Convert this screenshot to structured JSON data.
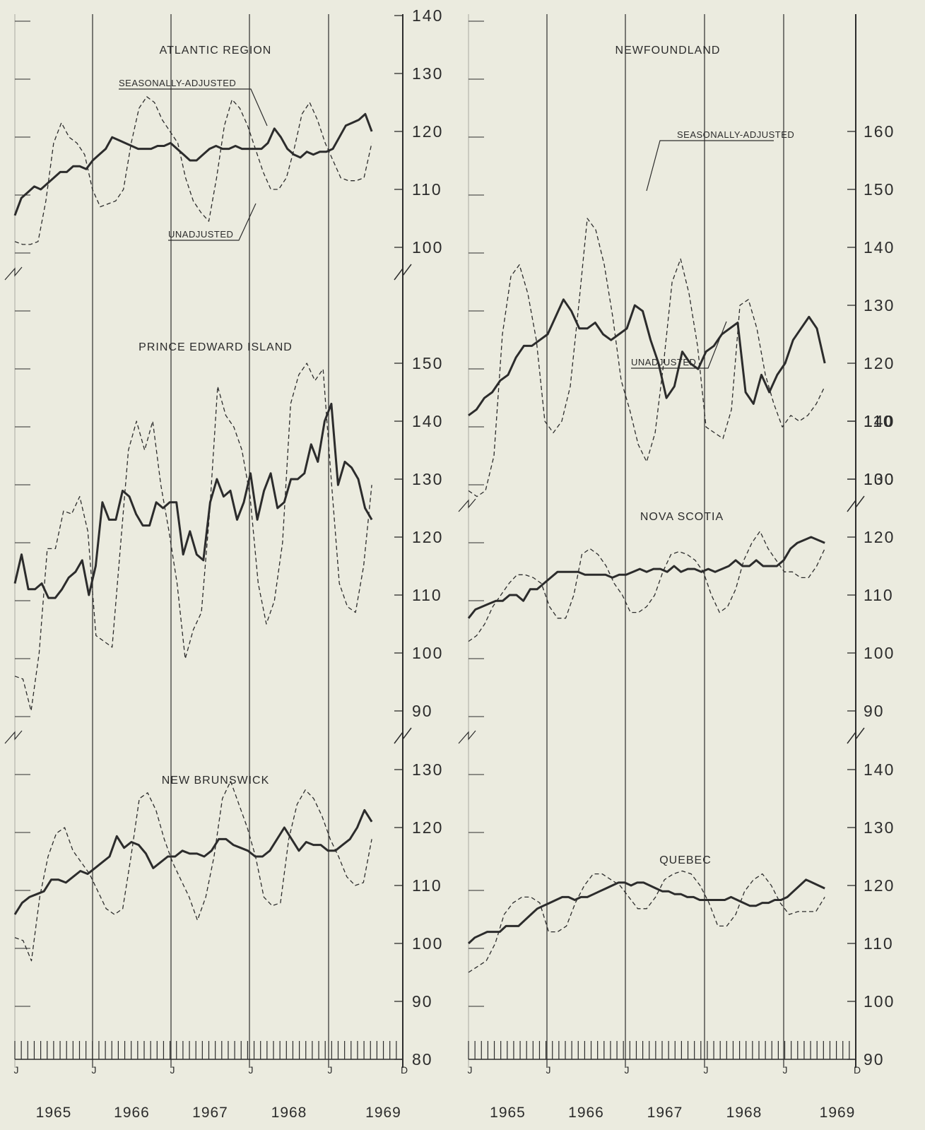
{
  "colors": {
    "background": "#ebebdf",
    "ink": "#2c2c2c"
  },
  "axis": {
    "x_ticks": [
      "J",
      "J",
      "J",
      "J",
      "J",
      "D"
    ],
    "years": [
      "1965",
      "1966",
      "1967",
      "1968",
      "1969"
    ]
  },
  "chart_data": [
    {
      "type": "line",
      "title": "ATLANTIC REGION",
      "x_start": "1965-01",
      "x_end": "1969-06",
      "ylim": [
        100,
        140
      ],
      "y_ticks": [
        "100",
        "110",
        "120",
        "130",
        "140"
      ],
      "annotations": [
        "SEASONALLY-ADJUSTED",
        "UNADJUSTED"
      ],
      "series": [
        {
          "style": "solid",
          "values": [
            105.5,
            108.5,
            109.5,
            110.5,
            110,
            111,
            112,
            113,
            113,
            114,
            114,
            113.5,
            115,
            116,
            117,
            119,
            118.5,
            118,
            117.5,
            117,
            117,
            117,
            117.5,
            117.5,
            118,
            117,
            116,
            115,
            115,
            116,
            117,
            117.5,
            117,
            117,
            117.5,
            117,
            117,
            117,
            117,
            118,
            120.5,
            119,
            117,
            116,
            115.5,
            116.5,
            116,
            116.5,
            116.5,
            117,
            119,
            121,
            121.5,
            122,
            123,
            120
          ]
        },
        {
          "style": "dashed",
          "values": [
            101,
            100.5,
            100.5,
            101,
            108,
            118,
            121.5,
            119,
            118,
            116,
            110,
            107,
            107.5,
            108,
            110,
            118,
            124,
            126,
            125,
            122,
            120,
            118,
            112,
            108,
            106,
            104.5,
            112,
            121,
            125.5,
            124,
            121,
            117,
            113,
            110,
            110,
            112,
            117,
            123,
            125,
            122,
            118,
            115,
            112,
            111.5,
            111.5,
            112,
            118
          ]
        }
      ]
    },
    {
      "type": "line",
      "title": "PRINCE EDWARD ISLAND",
      "x_start": "1965-01",
      "x_end": "1969-06",
      "ylim": [
        90,
        150
      ],
      "y_ticks": [
        "90",
        "100",
        "110",
        "120",
        "130",
        "140",
        "150"
      ],
      "series": [
        {
          "style": "solid",
          "values": [
            112,
            117,
            111,
            111,
            112,
            109.5,
            109.5,
            111,
            113,
            114,
            116,
            110,
            115,
            126,
            123,
            123,
            128,
            127,
            124,
            122,
            122,
            126,
            125,
            126,
            126,
            117,
            121,
            117,
            116,
            126,
            130,
            127,
            128,
            123,
            126,
            131,
            123,
            128,
            131,
            125,
            126,
            130,
            130,
            131,
            136,
            133,
            140,
            143,
            129,
            133,
            132,
            130,
            125,
            123
          ]
        },
        {
          "style": "dashed",
          "values": [
            96,
            95.5,
            90,
            100,
            118,
            118,
            124.5,
            124,
            127,
            121,
            103,
            102,
            101,
            118,
            135,
            140,
            135,
            140,
            129,
            121,
            112,
            99,
            104,
            107,
            124,
            146,
            141,
            139,
            135,
            127,
            112,
            105,
            109,
            119,
            143,
            148,
            150,
            147,
            149,
            130,
            112,
            108,
            107,
            115,
            129
          ]
        }
      ]
    },
    {
      "type": "line",
      "title": "NEW BRUNSWICK",
      "x_start": "1965-01",
      "x_end": "1969-06",
      "ylim": [
        80,
        130
      ],
      "y_ticks": [
        "80",
        "90",
        "100",
        "110",
        "120",
        "130"
      ],
      "series": [
        {
          "style": "solid",
          "values": [
            105,
            107,
            108,
            108.5,
            109,
            111,
            111,
            110.5,
            111.5,
            112.5,
            112,
            113,
            114,
            115,
            118.5,
            116.5,
            117.5,
            117,
            115.5,
            113,
            114,
            115,
            115,
            116,
            115.5,
            115.5,
            115,
            116,
            118,
            118,
            117,
            116.5,
            116,
            115,
            115,
            116,
            118,
            120,
            118,
            116,
            117.5,
            117,
            117,
            116,
            116,
            117,
            118,
            120,
            123,
            121
          ]
        },
        {
          "style": "dashed",
          "values": [
            101,
            100.5,
            97,
            108,
            115,
            119,
            120,
            116,
            114,
            112,
            109,
            106,
            105,
            106,
            115,
            125,
            126,
            123,
            118,
            114,
            111,
            108,
            104,
            108,
            115,
            125,
            128,
            124,
            120,
            115,
            108,
            106.5,
            107,
            118,
            124,
            126.5,
            125,
            122,
            118,
            115,
            111.5,
            110,
            110.5,
            118
          ]
        }
      ]
    },
    {
      "type": "line",
      "title": "NEWFOUNDLAND",
      "x_start": "1965-01",
      "x_end": "1969-06",
      "ylim": [
        100,
        160
      ],
      "y_ticks": [
        "100",
        "110",
        "120",
        "130",
        "140",
        "150",
        "160"
      ],
      "annotations": [
        "SEASONALLY-ADJUSTED",
        "UNADJUSTED"
      ],
      "series": [
        {
          "style": "solid",
          "values": [
            111,
            112,
            114,
            115,
            117,
            118,
            121,
            123,
            123,
            124,
            125,
            128,
            131,
            129,
            126,
            126,
            127,
            125,
            124,
            125,
            126,
            130,
            129,
            124,
            120,
            114,
            116,
            122,
            120,
            119,
            122,
            123,
            125,
            126,
            127,
            115,
            113,
            118,
            115,
            118,
            120,
            124,
            126,
            128,
            126,
            120
          ]
        },
        {
          "style": "dashed",
          "values": [
            98,
            97,
            98,
            104,
            125,
            135,
            137,
            132,
            124,
            110,
            108,
            110,
            116,
            130,
            145,
            143,
            137,
            128,
            117,
            112,
            106,
            103,
            108,
            120,
            134,
            138,
            132,
            123,
            109,
            108,
            107,
            112,
            130,
            131,
            126,
            118,
            113,
            109,
            111,
            110,
            111,
            113,
            116
          ]
        }
      ]
    },
    {
      "type": "line",
      "title": "NOVA SCOTIA",
      "x_start": "1965-01",
      "x_end": "1969-06",
      "ylim": [
        90,
        140
      ],
      "y_ticks": [
        "90",
        "100",
        "110",
        "120",
        "130",
        "140"
      ],
      "series": [
        {
          "style": "solid",
          "values": [
            106,
            107.5,
            108,
            108.5,
            109,
            109,
            110,
            110,
            109,
            111,
            111,
            112,
            113,
            114,
            114,
            114,
            114,
            113.5,
            113.5,
            113.5,
            113.5,
            113,
            113.5,
            113.5,
            114,
            114.5,
            114,
            114.5,
            114.5,
            114,
            115,
            114,
            114.5,
            114.5,
            114,
            114.5,
            114,
            114.5,
            115,
            116,
            115,
            115,
            116,
            115,
            115,
            115,
            116,
            118,
            119,
            119.5,
            120,
            119.5,
            119
          ]
        },
        {
          "style": "dashed",
          "values": [
            102,
            103,
            105,
            108,
            110,
            112,
            113.5,
            113.5,
            113,
            112,
            108,
            106,
            106,
            110,
            117,
            118,
            117,
            115,
            112,
            110,
            107,
            107,
            108,
            110,
            114,
            117,
            117.5,
            117,
            116,
            114,
            110,
            107,
            108,
            111,
            116,
            119,
            121,
            118,
            116,
            114,
            114,
            113,
            113,
            115,
            118
          ]
        }
      ]
    },
    {
      "type": "line",
      "title": "QUEBEC",
      "x_start": "1965-01",
      "x_end": "1969-06",
      "ylim": [
        90,
        140
      ],
      "y_ticks": [
        "90",
        "100",
        "110",
        "120",
        "130",
        "140"
      ],
      "series": [
        {
          "style": "solid",
          "values": [
            110,
            111,
            111.5,
            112,
            112,
            112,
            113,
            113,
            113,
            114,
            115,
            116,
            116.5,
            117,
            117.5,
            118,
            118,
            117.5,
            118,
            118,
            118.5,
            119,
            119.5,
            120,
            120.5,
            120.5,
            120,
            120.5,
            120.5,
            120,
            119.5,
            119,
            119,
            118.5,
            118.5,
            118,
            118,
            117.5,
            117.5,
            117.5,
            117.5,
            117.5,
            118,
            117.5,
            117,
            116.5,
            116.5,
            117,
            117,
            117.5,
            117.5,
            118,
            119,
            120,
            121,
            120.5,
            120,
            119.5
          ]
        },
        {
          "style": "dashed",
          "values": [
            105,
            106,
            107,
            110,
            115,
            117,
            118,
            118,
            117,
            112,
            112,
            113,
            117,
            120,
            122,
            122,
            121,
            120,
            118,
            116,
            116,
            118,
            121,
            122,
            122.5,
            122,
            120,
            117,
            113,
            113,
            115,
            119,
            121,
            122,
            120,
            117,
            115,
            115.5,
            115.5,
            115.5,
            118
          ]
        }
      ]
    }
  ]
}
